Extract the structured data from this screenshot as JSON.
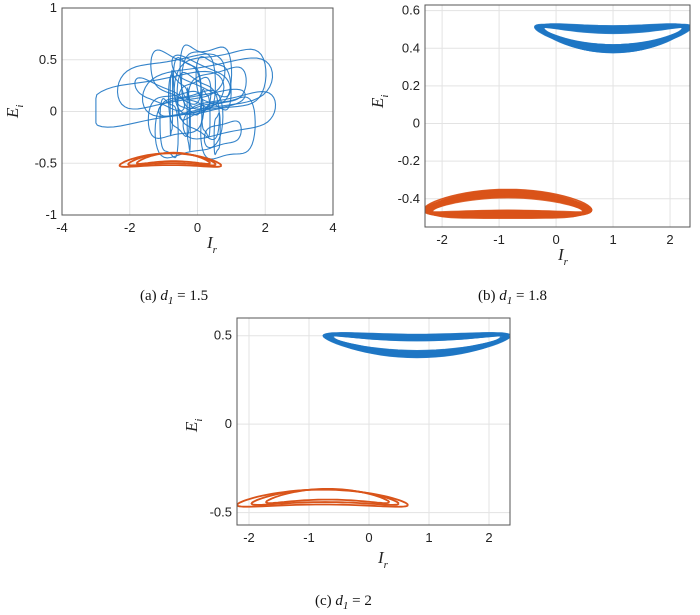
{
  "colors": {
    "blue": "#1f77c4",
    "orange": "#d9541a"
  },
  "chart_data": [
    {
      "type": "line",
      "xlabel": "I",
      "xlabel_sub": "r",
      "ylabel": "E",
      "ylabel_sub": "i",
      "xlim": [
        -4,
        4
      ],
      "ylim": [
        -1,
        1
      ],
      "xticks": [
        -4,
        -2,
        0,
        2,
        4
      ],
      "xtick_labels": [
        "-4",
        "-2",
        "0",
        "2",
        "4"
      ],
      "yticks": [
        -1,
        -0.5,
        0,
        0.5,
        1
      ],
      "ytick_labels": [
        "-1",
        "-0.5",
        "0",
        "0.5",
        "1"
      ],
      "grid": true,
      "caption": {
        "prefix": "(a) ",
        "var": "d",
        "sub": "1",
        "suffix": " = 1.5"
      },
      "series": [
        {
          "color": "blue",
          "attractor": "chaotic",
          "x": [
            -3.0,
            2.8
          ],
          "y": [
            -0.6,
            0.75
          ]
        },
        {
          "color": "orange",
          "attractor": "cycle",
          "x": [
            -2.3,
            0.7
          ],
          "y": [
            -0.62,
            -0.35
          ]
        }
      ]
    },
    {
      "type": "line",
      "xlabel": "I",
      "xlabel_sub": "r",
      "ylabel": "E",
      "ylabel_sub": "i",
      "xlim": [
        -2.3,
        2.35
      ],
      "ylim": [
        -0.55,
        0.63
      ],
      "xticks": [
        -2,
        -1,
        0,
        1,
        2
      ],
      "xtick_labels": [
        "-2",
        "-1",
        "0",
        "1",
        "2"
      ],
      "yticks": [
        -0.4,
        -0.2,
        0,
        0.2,
        0.4,
        0.6
      ],
      "ytick_labels": [
        "-0.4",
        "-0.2",
        "0",
        "0.2",
        "0.4",
        "0.6"
      ],
      "grid": true,
      "caption": {
        "prefix": "(b) ",
        "var": "d",
        "sub": "1",
        "suffix": " = 1.8"
      },
      "series": [
        {
          "color": "blue",
          "attractor": "band",
          "x": [
            -0.35,
            2.35
          ],
          "y": [
            0.36,
            0.6
          ]
        },
        {
          "color": "orange",
          "attractor": "band",
          "x": [
            -2.3,
            0.6
          ],
          "y": [
            -0.55,
            -0.3
          ]
        }
      ]
    },
    {
      "type": "line",
      "xlabel": "I",
      "xlabel_sub": "r",
      "ylabel": "E",
      "ylabel_sub": "i",
      "xlim": [
        -2.2,
        2.35
      ],
      "ylim": [
        -0.57,
        0.6
      ],
      "xticks": [
        -2,
        -1,
        0,
        1,
        2
      ],
      "xtick_labels": [
        "-2",
        "-1",
        "0",
        "1",
        "2"
      ],
      "yticks": [
        -0.5,
        0,
        0.5
      ],
      "ytick_labels": [
        "-0.5",
        "0",
        "0.5"
      ],
      "grid": true,
      "caption": {
        "prefix": "(c) ",
        "var": "d",
        "sub": "1",
        "suffix": " = 2"
      },
      "series": [
        {
          "color": "blue",
          "attractor": "band",
          "x": [
            -0.75,
            2.35
          ],
          "y": [
            0.36,
            0.58
          ]
        },
        {
          "color": "orange",
          "attractor": "cycle",
          "x": [
            -2.2,
            0.65
          ],
          "y": [
            -0.53,
            -0.33
          ]
        }
      ]
    }
  ]
}
